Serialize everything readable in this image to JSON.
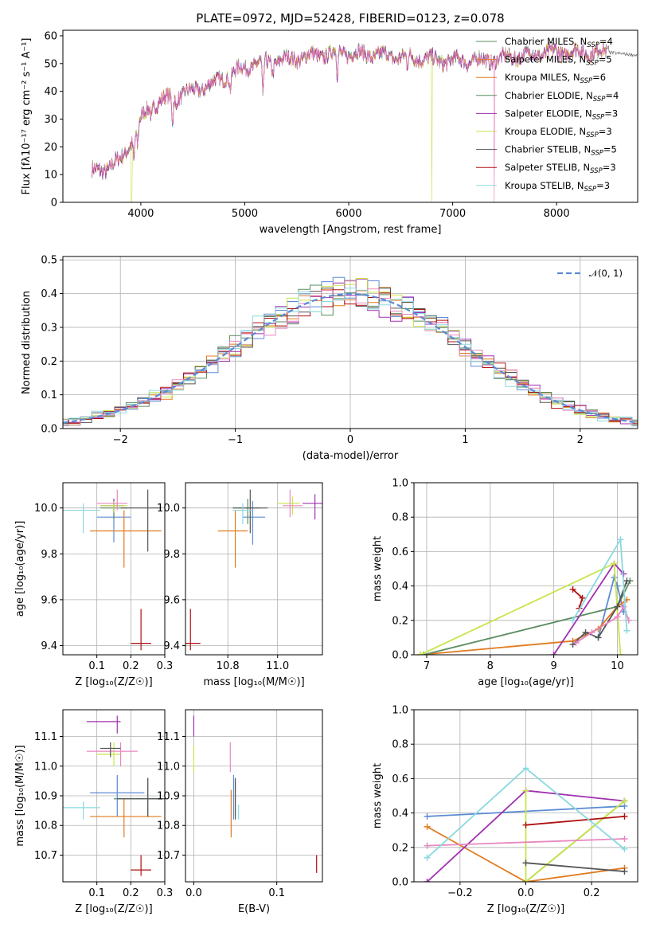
{
  "title": "PLATE=0972, MJD=52428, FIBERID=0123, z=0.078",
  "colors": [
    "#5b8bd6",
    "#e07b1f",
    "#5a8c5f",
    "#a030b0",
    "#c6e64a",
    "#555555",
    "#b01010",
    "#e887c0",
    "#8ad9e0"
  ],
  "chart_data": [
    {
      "id": "spectrum",
      "type": "line",
      "title": "PLATE=0972, MJD=52428, FIBERID=0123, z=0.078",
      "xlabel": "wavelength [Angstrom, rest frame]",
      "ylabel": "Flux [fλ10⁻¹⁷ erg cm⁻² s⁻¹ A⁻¹]",
      "xlim": [
        3250,
        8780
      ],
      "ylim": [
        0,
        62
      ],
      "xticks": [
        4000,
        5000,
        6000,
        7000,
        8000
      ],
      "yticks": [
        0,
        10,
        20,
        30,
        40,
        50,
        60
      ],
      "grid": false,
      "legend_placement": "right",
      "legend": [
        {
          "label": "Chabrier MILES, N",
          "sub": "SSP",
          "tail": "=4",
          "color": "#5a8c5f"
        },
        {
          "label": "Salpeter MILES, N",
          "sub": "SSP",
          "tail": "=5",
          "color": "#e07b1f"
        },
        {
          "label": "Kroupa MILES, N",
          "sub": "SSP",
          "tail": "=6",
          "color": "#e07b1f"
        },
        {
          "label": "Chabrier ELODIE, N",
          "sub": "SSP",
          "tail": "=4",
          "color": "#5a8c5f"
        },
        {
          "label": "Salpeter ELODIE, N",
          "sub": "SSP",
          "tail": "=3",
          "color": "#a030b0"
        },
        {
          "label": "Kroupa ELODIE, N",
          "sub": "SSP",
          "tail": "=3",
          "color": "#c6e64a"
        },
        {
          "label": "Chabrier STELIB, N",
          "sub": "SSP",
          "tail": "=5",
          "color": "#555555"
        },
        {
          "label": "Salpeter STELIB, N",
          "sub": "SSP",
          "tail": "=3",
          "color": "#b01010"
        },
        {
          "label": "Kroupa STELIB, N",
          "sub": "SSP",
          "tail": "=3",
          "color": "#8ad9e0"
        }
      ],
      "continuum_knots": {
        "x": [
          3530,
          3650,
          3800,
          3880,
          3950,
          4000,
          4100,
          4300,
          4500,
          4700,
          4900,
          5100,
          5300,
          5500,
          5700,
          5900,
          6100,
          6300,
          6500,
          6700,
          6900,
          7100,
          7300,
          7500,
          7700,
          7900,
          8100,
          8300,
          8500,
          8780
        ],
        "y": [
          11,
          12,
          15,
          20,
          25,
          30,
          35,
          38,
          40,
          43,
          47,
          50,
          51,
          52,
          53,
          54,
          53.5,
          53,
          52.5,
          52,
          51,
          51,
          51,
          52,
          53,
          54,
          54,
          54,
          54,
          53
        ]
      },
      "absorption_lines": [
        {
          "x": 3934,
          "depth": 8
        },
        {
          "x": 3969,
          "depth": 7
        },
        {
          "x": 4102,
          "depth": 4
        },
        {
          "x": 4305,
          "depth": 9
        },
        {
          "x": 4340,
          "depth": 4
        },
        {
          "x": 4861,
          "depth": 5
        },
        {
          "x": 5175,
          "depth": 14
        },
        {
          "x": 5270,
          "depth": 4
        },
        {
          "x": 5890,
          "depth": 9
        },
        {
          "x": 6563,
          "depth": 4
        }
      ],
      "artifact_drops": [
        {
          "x": 3520,
          "to": 0,
          "series": 7
        },
        {
          "x": 3910,
          "to": 0,
          "series": 4
        },
        {
          "x": 6800,
          "to": 0,
          "series": 4
        },
        {
          "x": 7400,
          "to": 0,
          "series": 7
        }
      ]
    },
    {
      "id": "residuals",
      "type": "line",
      "xlabel": "(data-model)/error",
      "ylabel": "Normed distribution",
      "xlim": [
        -2.5,
        2.5
      ],
      "ylim": [
        0,
        0.51
      ],
      "xticks": [
        -2,
        -1,
        0,
        1,
        2
      ],
      "yticks": [
        0.0,
        0.1,
        0.2,
        0.3,
        0.4,
        0.5
      ],
      "grid": true,
      "legend_placement": "top-right",
      "legend_label": "𝒩(0, 1)",
      "bin_width": 0.1
    },
    {
      "id": "age_vs_Z",
      "type": "scatter",
      "xlabel": "Z [log₁₀(Z/Z☉)]",
      "ylabel": "age  [log₁₀(age/yr)]",
      "xlim": [
        0.0,
        0.3
      ],
      "ylim": [
        9.36,
        10.11
      ],
      "xticks": [
        0.1,
        0.2,
        0.3
      ],
      "yticks": [
        9.4,
        9.6,
        9.8,
        10.0
      ],
      "grid": true,
      "points": [
        {
          "x": 0.15,
          "y": 9.96,
          "xerr": [
            0.1,
            0.2
          ],
          "yerr": [
            9.85,
            10.03
          ],
          "c": 0
        },
        {
          "x": 0.18,
          "y": 9.9,
          "xerr": [
            0.08,
            0.29
          ],
          "yerr": [
            9.74,
            9.99
          ],
          "c": 1
        },
        {
          "x": 0.15,
          "y": 10.0,
          "xerr": [
            0.11,
            0.19
          ],
          "yerr": [
            9.95,
            10.04
          ],
          "c": 2
        },
        {
          "x": 0.15,
          "y": 10.01,
          "xerr": [
            0.11,
            0.18
          ],
          "yerr": [
            9.98,
            10.04
          ],
          "c": 3
        },
        {
          "x": 0.15,
          "y": 10.01,
          "xerr": [
            0.11,
            0.19
          ],
          "yerr": [
            9.98,
            10.03
          ],
          "c": 4
        },
        {
          "x": 0.25,
          "y": 10.0,
          "xerr": [
            0.17,
            0.29
          ],
          "yerr": [
            9.81,
            10.08
          ],
          "c": 5
        },
        {
          "x": 0.23,
          "y": 9.41,
          "xerr": [
            0.2,
            0.26
          ],
          "yerr": [
            9.38,
            9.56
          ],
          "c": 6
        },
        {
          "x": 0.16,
          "y": 10.02,
          "xerr": [
            0.1,
            0.19
          ],
          "yerr": [
            9.99,
            10.08
          ],
          "c": 7
        },
        {
          "x": 0.06,
          "y": 9.99,
          "xerr": [
            0.0,
            0.11
          ],
          "yerr": [
            9.89,
            10.02
          ],
          "c": 8
        }
      ]
    },
    {
      "id": "age_vs_mass",
      "type": "scatter",
      "xlabel": "mass [log₁₀(M/M☉)]",
      "ylabel": "",
      "xlim": [
        10.63,
        11.18
      ],
      "ylim": [
        9.36,
        10.11
      ],
      "xticks": [
        10.8,
        11.0
      ],
      "yticks": [
        9.4,
        9.6,
        9.8,
        10.0
      ],
      "grid": true,
      "points": [
        {
          "x": 10.9,
          "y": 9.96,
          "xerr": [
            10.86,
            10.95
          ],
          "yerr": [
            9.84,
            10.03
          ],
          "c": 0
        },
        {
          "x": 10.83,
          "y": 9.9,
          "xerr": [
            10.76,
            10.88
          ],
          "yerr": [
            9.74,
            9.99
          ],
          "c": 1
        },
        {
          "x": 10.88,
          "y": 10.0,
          "xerr": [
            10.82,
            10.93
          ],
          "yerr": [
            9.93,
            10.04
          ],
          "c": 2
        },
        {
          "x": 11.15,
          "y": 10.02,
          "xerr": [
            11.1,
            11.18
          ],
          "yerr": [
            9.95,
            10.06
          ],
          "c": 3
        },
        {
          "x": 11.06,
          "y": 10.02,
          "xerr": [
            11.0,
            11.09
          ],
          "yerr": [
            9.97,
            10.05
          ],
          "c": 4
        },
        {
          "x": 10.89,
          "y": 10.0,
          "xerr": [
            10.82,
            10.96
          ],
          "yerr": [
            9.89,
            10.08
          ],
          "c": 5
        },
        {
          "x": 10.65,
          "y": 9.41,
          "xerr": [
            10.63,
            10.69
          ],
          "yerr": [
            9.38,
            9.56
          ],
          "c": 6
        },
        {
          "x": 11.05,
          "y": 10.01,
          "xerr": [
            11.02,
            11.1
          ],
          "yerr": [
            9.96,
            10.08
          ],
          "c": 7
        },
        {
          "x": 10.86,
          "y": 9.99,
          "xerr": [
            10.82,
            10.9
          ],
          "yerr": [
            9.93,
            10.02
          ],
          "c": 8
        }
      ]
    },
    {
      "id": "weight_vs_age",
      "type": "line",
      "xlabel": "age  [log₁₀(age/yr)]",
      "ylabel": "mass weight",
      "xlim": [
        6.8,
        10.32
      ],
      "ylim": [
        0,
        1.0
      ],
      "xticks": [
        7,
        8,
        9,
        10
      ],
      "yticks": [
        0.0,
        0.2,
        0.4,
        0.6,
        0.8,
        1.0
      ],
      "grid": true,
      "series": [
        {
          "c": 0,
          "x": [
            9.7,
            9.95,
            10.0,
            10.1
          ],
          "y": [
            0.1,
            0.45,
            0.4,
            0.25
          ]
        },
        {
          "c": 1,
          "x": [
            6.9,
            9.3,
            9.7,
            10.0,
            10.15
          ],
          "y": [
            0.0,
            0.08,
            0.15,
            0.28,
            0.32
          ]
        },
        {
          "c": 2,
          "x": [
            6.95,
            10.0,
            10.2
          ],
          "y": [
            0.0,
            0.28,
            0.43
          ]
        },
        {
          "c": 3,
          "x": [
            9.0,
            9.95,
            10.1
          ],
          "y": [
            0.0,
            0.53,
            0.47
          ]
        },
        {
          "c": 4,
          "x": [
            6.9,
            9.95,
            10.05
          ],
          "y": [
            0.0,
            0.53,
            0.0
          ]
        },
        {
          "c": 5,
          "x": [
            9.3,
            9.5,
            9.7,
            10.0,
            10.15
          ],
          "y": [
            0.06,
            0.13,
            0.1,
            0.28,
            0.43
          ]
        },
        {
          "c": 6,
          "x": [
            9.3,
            9.45,
            9.4
          ],
          "y": [
            0.38,
            0.33,
            0.27
          ]
        },
        {
          "c": 7,
          "x": [
            9.35,
            9.6,
            10.0,
            10.1,
            10.18
          ],
          "y": [
            0.07,
            0.13,
            0.22,
            0.28,
            0.2
          ]
        },
        {
          "c": 8,
          "x": [
            9.3,
            10.05,
            10.15
          ],
          "y": [
            0.2,
            0.67,
            0.14
          ]
        }
      ]
    },
    {
      "id": "mass_vs_Z",
      "type": "scatter",
      "xlabel": "Z [log₁₀(Z/Z☉)]",
      "ylabel": "mass [log₁₀(M/M☉)]",
      "xlim": [
        0.0,
        0.3
      ],
      "ylim": [
        10.61,
        11.19
      ],
      "xticks": [
        0.1,
        0.2,
        0.3
      ],
      "yticks": [
        10.7,
        10.8,
        10.9,
        11.0,
        11.1
      ],
      "grid": true,
      "points": [
        {
          "x": 0.16,
          "y": 10.91,
          "xerr": [
            0.08,
            0.24
          ],
          "yerr": [
            10.83,
            10.97
          ],
          "c": 0
        },
        {
          "x": 0.18,
          "y": 10.83,
          "xerr": [
            0.08,
            0.29
          ],
          "yerr": [
            10.76,
            10.89
          ],
          "c": 1
        },
        {
          "x": 0.25,
          "y": 10.89,
          "xerr": [
            0.15,
            0.29
          ],
          "yerr": [
            10.83,
            10.96
          ],
          "c": 2
        },
        {
          "x": 0.16,
          "y": 11.15,
          "xerr": [
            0.07,
            0.17
          ],
          "yerr": [
            11.11,
            11.17
          ],
          "c": 3
        },
        {
          "x": 0.15,
          "y": 11.04,
          "xerr": [
            0.1,
            0.17
          ],
          "yerr": [
            11.0,
            11.08
          ],
          "c": 4
        },
        {
          "x": 0.25,
          "y": 10.89,
          "xerr": [
            0.16,
            0.3
          ],
          "yerr": [
            10.83,
            10.96
          ],
          "c": 5
        },
        {
          "x": 0.23,
          "y": 10.65,
          "xerr": [
            0.2,
            0.26
          ],
          "yerr": [
            10.63,
            10.7
          ],
          "c": 6
        },
        {
          "x": 0.17,
          "y": 11.05,
          "xerr": [
            0.07,
            0.22
          ],
          "yerr": [
            11.0,
            11.08
          ],
          "c": 7
        },
        {
          "x": 0.06,
          "y": 10.86,
          "xerr": [
            0.0,
            0.11
          ],
          "yerr": [
            10.82,
            10.88
          ],
          "c": 8
        },
        {
          "x": 0.14,
          "y": 11.06,
          "xerr": [
            0.11,
            0.17
          ],
          "yerr": [
            11.03,
            11.08
          ],
          "c": 5
        }
      ]
    },
    {
      "id": "mass_vs_EBV",
      "type": "scatter",
      "xlabel": "E(B-V)",
      "ylabel": "",
      "xlim": [
        -0.01,
        0.155
      ],
      "ylim": [
        10.61,
        11.19
      ],
      "xticks": [
        0.0,
        0.1
      ],
      "yticks": [
        10.7,
        10.8,
        10.9,
        11.0,
        11.1
      ],
      "grid": true,
      "points": [
        {
          "x": 0.048,
          "y": 10.9,
          "yerr": [
            10.82,
            10.97
          ],
          "c": 0
        },
        {
          "x": 0.045,
          "y": 10.84,
          "yerr": [
            10.76,
            10.92
          ],
          "c": 1
        },
        {
          "x": 0.05,
          "y": 10.88,
          "yerr": [
            10.83,
            10.95
          ],
          "c": 2
        },
        {
          "x": 0.0,
          "y": 11.15,
          "yerr": [
            11.1,
            11.17
          ],
          "c": 3
        },
        {
          "x": 0.0,
          "y": 11.0,
          "yerr": [
            10.98,
            11.07
          ],
          "c": 4
        },
        {
          "x": 0.05,
          "y": 10.9,
          "yerr": [
            10.82,
            10.96
          ],
          "c": 5
        },
        {
          "x": 0.148,
          "y": 10.67,
          "yerr": [
            10.64,
            10.7
          ],
          "c": 6
        },
        {
          "x": 0.044,
          "y": 11.03,
          "yerr": [
            10.98,
            11.08
          ],
          "c": 7
        },
        {
          "x": 0.054,
          "y": 10.85,
          "yerr": [
            10.82,
            10.87
          ],
          "c": 8
        }
      ]
    },
    {
      "id": "weight_vs_Z",
      "type": "line",
      "xlabel": "Z [log₁₀(Z/Z☉)]",
      "ylabel": "mass weight",
      "xlim": [
        -0.34,
        0.34
      ],
      "ylim": [
        0,
        1.0
      ],
      "xticks": [
        -0.2,
        0.0,
        0.2
      ],
      "yticks": [
        0.0,
        0.2,
        0.4,
        0.6,
        0.8,
        1.0
      ],
      "grid": true,
      "series": [
        {
          "c": 0,
          "x": [
            -0.3,
            0.3
          ],
          "y": [
            0.38,
            0.44
          ]
        },
        {
          "c": 1,
          "x": [
            -0.3,
            0.0,
            0.3
          ],
          "y": [
            0.32,
            0.0,
            0.08
          ]
        },
        {
          "c": 2,
          "x": [
            0.0,
            0.3
          ],
          "y": [
            0.0,
            0.47
          ]
        },
        {
          "c": 3,
          "x": [
            -0.3,
            0.0,
            0.3
          ],
          "y": [
            0.0,
            0.53,
            0.47
          ]
        },
        {
          "c": 4,
          "x": [
            0.0,
            0.0,
            0.3
          ],
          "y": [
            0.53,
            0.0,
            0.47
          ]
        },
        {
          "c": 5,
          "x": [
            0.0,
            0.3
          ],
          "y": [
            0.11,
            0.06
          ]
        },
        {
          "c": 6,
          "x": [
            0.0,
            0.3
          ],
          "y": [
            0.33,
            0.38
          ]
        },
        {
          "c": 7,
          "x": [
            -0.3,
            0.3
          ],
          "y": [
            0.21,
            0.25
          ]
        },
        {
          "c": 8,
          "x": [
            -0.3,
            0.0,
            0.3
          ],
          "y": [
            0.14,
            0.66,
            0.19
          ]
        }
      ]
    }
  ]
}
